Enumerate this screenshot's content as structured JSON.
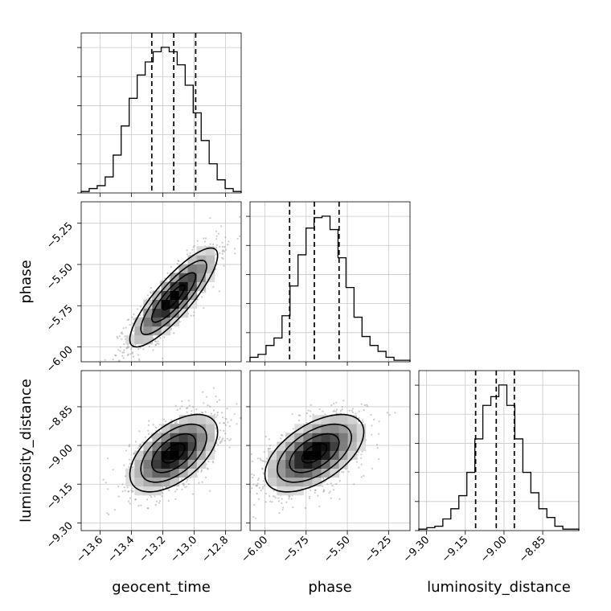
{
  "chart_data": {
    "type": "corner",
    "parameters": [
      "geocent_time",
      "phase",
      "luminosity_distance"
    ],
    "ranges": {
      "geocent_time": [
        -13.72,
        -12.7
      ],
      "phase": [
        -6.09,
        -5.12
      ],
      "luminosity_distance": [
        -9.33,
        -8.71
      ]
    },
    "ticks": {
      "geocent_time": [
        -13.6,
        -13.4,
        -13.2,
        -13.0,
        -12.8
      ],
      "phase": [
        -6.0,
        -5.75,
        -5.5,
        -5.25
      ],
      "luminosity_distance": [
        -9.3,
        -9.15,
        -9.0,
        -8.85
      ]
    },
    "tick_labels": {
      "geocent_time": [
        "−13.6",
        "−13.4",
        "−13.2",
        "−13.0",
        "−12.8"
      ],
      "phase": [
        "−6.00",
        "−5.75",
        "−5.50",
        "−5.25"
      ],
      "luminosity_distance": [
        "−9.30",
        "−9.15",
        "−9.00",
        "−8.85"
      ]
    },
    "quantiles": {
      "geocent_time": [
        -13.27,
        -13.13,
        -12.99
      ],
      "phase": [
        -5.85,
        -5.7,
        -5.55
      ],
      "luminosity_distance": [
        -9.11,
        -9.03,
        -8.96
      ]
    },
    "histograms": {
      "geocent_time": {
        "bins": [
          -13.72,
          -12.7
        ],
        "counts": [
          1,
          3,
          5,
          11,
          26,
          46,
          65,
          81,
          90,
          97,
          100,
          97,
          88,
          74,
          55,
          36,
          20,
          9,
          3,
          1
        ]
      },
      "phase": {
        "bins": [
          -6.09,
          -5.12
        ],
        "counts": [
          3,
          5,
          11,
          16,
          31,
          51,
          72,
          90,
          97,
          98,
          89,
          70,
          50,
          30,
          17,
          11,
          7,
          3,
          1,
          1
        ]
      },
      "luminosity_distance": {
        "bins": [
          -9.33,
          -8.71
        ],
        "counts": [
          1,
          2,
          3,
          8,
          15,
          24,
          40,
          63,
          86,
          92,
          100,
          86,
          63,
          40,
          26,
          15,
          9,
          3,
          1,
          1
        ]
      }
    },
    "correlations": {
      "phase|geocent_time": 0.85,
      "luminosity_distance|geocent_time": 0.55,
      "luminosity_distance|phase": 0.55
    },
    "contour_levels": [
      0.5,
      1.0,
      1.5,
      2.0
    ],
    "grid": true
  }
}
